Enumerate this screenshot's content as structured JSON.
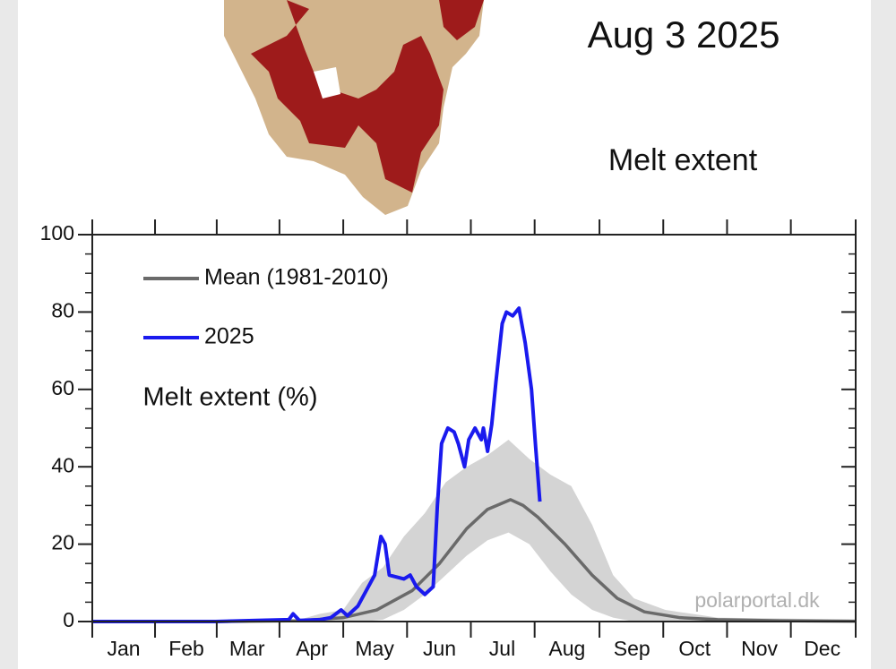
{
  "chart_data": {
    "type": "line",
    "title": "Aug 3 2025",
    "subtitle": "Melt extent",
    "ylabel": "Melt extent (%)",
    "watermark": "polarportal.dk",
    "xlim": [
      1,
      366
    ],
    "xticks": [
      {
        "value": 16,
        "label": "Jan"
      },
      {
        "value": 46,
        "label": "Feb"
      },
      {
        "value": 75,
        "label": "Mar"
      },
      {
        "value": 106,
        "label": "Apr"
      },
      {
        "value": 136,
        "label": "May"
      },
      {
        "value": 167,
        "label": "Jun"
      },
      {
        "value": 197,
        "label": "Jul"
      },
      {
        "value": 228,
        "label": "Aug"
      },
      {
        "value": 259,
        "label": "Sep"
      },
      {
        "value": 289,
        "label": "Oct"
      },
      {
        "value": 320,
        "label": "Nov"
      },
      {
        "value": 350,
        "label": "Dec"
      }
    ],
    "ylim": [
      0,
      100
    ],
    "yticks": [
      0,
      20,
      40,
      60,
      80,
      100
    ],
    "legend": "upper left",
    "band": {
      "color": "#d4d4d4",
      "x": [
        1,
        100,
        110,
        121,
        130,
        140,
        150,
        160,
        170,
        180,
        190,
        200,
        210,
        220,
        230,
        240,
        250,
        260,
        275,
        300,
        366
      ],
      "upper": [
        0,
        0.5,
        2,
        3,
        10,
        14,
        22,
        28,
        36,
        40,
        43,
        47,
        42,
        38,
        35,
        25,
        12,
        6,
        3,
        1,
        0.5
      ],
      "lower": [
        0,
        0,
        0,
        0,
        0,
        0.5,
        3,
        7,
        12,
        17,
        21,
        23,
        20,
        13,
        7,
        3,
        1,
        0,
        0,
        0,
        0
      ]
    },
    "series": [
      {
        "name": "Mean (1981-2010)",
        "color": "#6a6a6a",
        "x": [
          1,
          60,
          100,
          121,
          137,
          154,
          167,
          180,
          190,
          201,
          207,
          214,
          227,
          240,
          252,
          265,
          282,
          300,
          330,
          366
        ],
        "values": [
          0,
          0,
          0.2,
          1,
          3,
          8,
          15,
          24,
          29,
          31.5,
          30,
          27,
          20,
          12,
          6,
          2.5,
          1,
          0.5,
          0.2,
          0.1
        ]
      },
      {
        "name": "2025",
        "color": "#1a1aee",
        "x": [
          1,
          20,
          40,
          60,
          80,
          95,
          97,
          100,
          110,
          115,
          120,
          123,
          128,
          132,
          136,
          139,
          141,
          143,
          150,
          153,
          156,
          160,
          164,
          166,
          168,
          171,
          174,
          176,
          179,
          181,
          184,
          187,
          188,
          190,
          192,
          194,
          197,
          199,
          202,
          205,
          208,
          211,
          213,
          215
        ],
        "values": [
          0,
          0,
          0,
          0,
          0.3,
          0.5,
          2,
          0.3,
          0.5,
          1,
          3,
          1.5,
          4,
          8,
          12,
          22,
          20,
          12,
          11,
          12,
          9,
          7,
          9,
          30,
          46,
          50,
          49,
          46,
          40,
          47,
          50,
          47,
          50,
          44,
          51,
          62,
          77,
          80,
          79,
          81,
          72,
          60,
          45,
          31
        ]
      }
    ]
  }
}
